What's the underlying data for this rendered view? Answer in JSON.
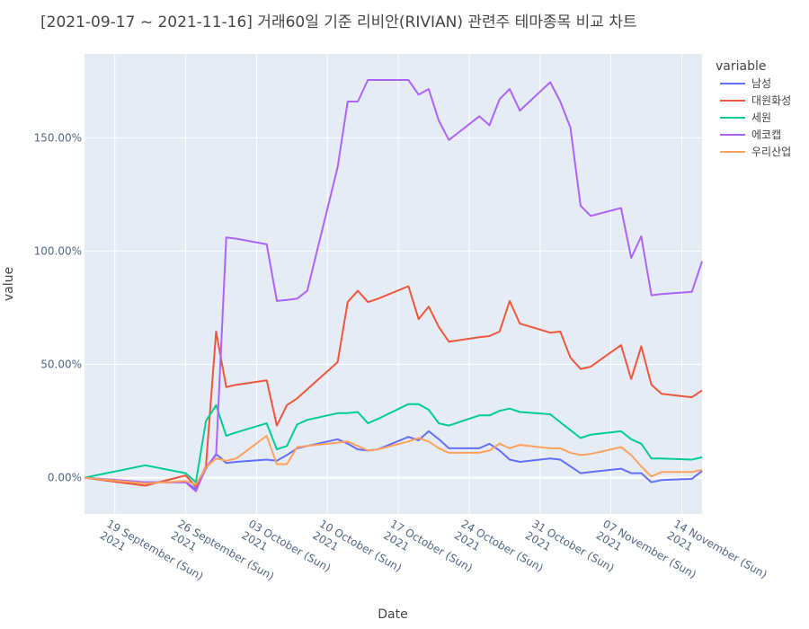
{
  "chart_data": {
    "type": "line",
    "title": "[2021-09-17 ~ 2021-11-16] 거래60일 기준 리비안(RIVIAN) 관련주 테마종목 비교 차트",
    "xlabel": "Date",
    "ylabel": "value",
    "legend_title": "variable",
    "legend_position": "right",
    "background": "#e5ecf6",
    "x_range": [
      "2021-09-16",
      "2021-11-16"
    ],
    "y_range": [
      -0.16,
      1.87
    ],
    "y_ticks": [
      {
        "value": 0.0,
        "label": "0.00%"
      },
      {
        "value": 0.5,
        "label": "50.00%"
      },
      {
        "value": 1.0,
        "label": "100.00%"
      },
      {
        "value": 1.5,
        "label": "150.00%"
      }
    ],
    "x_ticks": [
      {
        "date": "2021-09-19",
        "line1": "19 September (Sun)",
        "line2": "2021"
      },
      {
        "date": "2021-09-26",
        "line1": "26 September (Sun)",
        "line2": "2021"
      },
      {
        "date": "2021-10-03",
        "line1": "03 October (Sun)",
        "line2": "2021"
      },
      {
        "date": "2021-10-10",
        "line1": "10 October (Sun)",
        "line2": "2021"
      },
      {
        "date": "2021-10-17",
        "line1": "17 October (Sun)",
        "line2": "2021"
      },
      {
        "date": "2021-10-24",
        "line1": "24 October (Sun)",
        "line2": "2021"
      },
      {
        "date": "2021-10-31",
        "line1": "31 October (Sun)",
        "line2": "2021"
      },
      {
        "date": "2021-11-07",
        "line1": "07 November (Sun)",
        "line2": "2021"
      },
      {
        "date": "2021-11-14",
        "line1": "14 November (Sun)",
        "line2": "2021"
      }
    ],
    "x": [
      "2021-09-16",
      "2021-09-22",
      "2021-09-26",
      "2021-09-27",
      "2021-09-28",
      "2021-09-29",
      "2021-09-30",
      "2021-10-01",
      "2021-10-04",
      "2021-10-05",
      "2021-10-06",
      "2021-10-07",
      "2021-10-08",
      "2021-10-11",
      "2021-10-12",
      "2021-10-13",
      "2021-10-14",
      "2021-10-15",
      "2021-10-18",
      "2021-10-19",
      "2021-10-20",
      "2021-10-21",
      "2021-10-22",
      "2021-10-25",
      "2021-10-26",
      "2021-10-27",
      "2021-10-28",
      "2021-10-29",
      "2021-11-01",
      "2021-11-02",
      "2021-11-03",
      "2021-11-04",
      "2021-11-05",
      "2021-11-08",
      "2021-11-09",
      "2021-11-10",
      "2021-11-11",
      "2021-11-12",
      "2021-11-15",
      "2021-11-16"
    ],
    "series": [
      {
        "name": "남성",
        "color": "#636efa",
        "values": [
          0.0,
          -0.02,
          -0.02,
          -0.05,
          0.04,
          0.105,
          0.065,
          0.07,
          0.08,
          0.075,
          0.1,
          0.13,
          0.14,
          0.17,
          0.15,
          0.125,
          0.12,
          0.125,
          0.18,
          0.165,
          0.205,
          0.17,
          0.13,
          0.13,
          0.15,
          0.12,
          0.08,
          0.07,
          0.085,
          0.08,
          0.05,
          0.02,
          0.025,
          0.04,
          0.02,
          0.02,
          -0.02,
          -0.01,
          -0.005,
          0.03
        ]
      },
      {
        "name": "대원화성",
        "color": "#ef553b",
        "values": [
          0.0,
          -0.035,
          0.01,
          -0.04,
          0.05,
          0.645,
          0.4,
          0.41,
          0.43,
          0.23,
          0.32,
          0.35,
          0.39,
          0.51,
          0.775,
          0.825,
          0.775,
          0.79,
          0.845,
          0.7,
          0.755,
          0.665,
          0.6,
          0.62,
          0.625,
          0.645,
          0.78,
          0.68,
          0.64,
          0.645,
          0.53,
          0.48,
          0.49,
          0.585,
          0.435,
          0.58,
          0.41,
          0.37,
          0.355,
          0.385
        ]
      },
      {
        "name": "세원",
        "color": "#00cc96",
        "values": [
          0.0,
          0.055,
          0.02,
          -0.02,
          0.25,
          0.32,
          0.185,
          0.2,
          0.24,
          0.125,
          0.14,
          0.235,
          0.255,
          0.285,
          0.285,
          0.29,
          0.24,
          0.26,
          0.325,
          0.325,
          0.3,
          0.24,
          0.23,
          0.275,
          0.275,
          0.295,
          0.305,
          0.29,
          0.28,
          0.245,
          0.21,
          0.175,
          0.19,
          0.205,
          0.17,
          0.15,
          0.085,
          0.085,
          0.08,
          0.09
        ]
      },
      {
        "name": "에코캡",
        "color": "#ab63fa",
        "values": [
          0.0,
          -0.02,
          -0.02,
          -0.06,
          0.045,
          0.1,
          1.06,
          1.055,
          1.03,
          0.78,
          0.785,
          0.79,
          0.825,
          1.37,
          1.66,
          1.66,
          1.755,
          1.755,
          1.755,
          1.69,
          1.715,
          1.575,
          1.49,
          1.595,
          1.555,
          1.67,
          1.715,
          1.62,
          1.745,
          1.66,
          1.545,
          1.2,
          1.155,
          1.19,
          0.97,
          1.065,
          0.805,
          0.81,
          0.82,
          0.955
        ]
      },
      {
        "name": "우리산업",
        "color": "#ffa15a",
        "values": [
          0.0,
          -0.025,
          -0.015,
          -0.03,
          0.045,
          0.085,
          0.075,
          0.085,
          0.185,
          0.06,
          0.06,
          0.135,
          0.14,
          0.155,
          0.16,
          0.14,
          0.12,
          0.125,
          0.16,
          0.175,
          0.16,
          0.13,
          0.11,
          0.11,
          0.12,
          0.15,
          0.13,
          0.145,
          0.13,
          0.13,
          0.11,
          0.1,
          0.105,
          0.135,
          0.1,
          0.05,
          0.005,
          0.025,
          0.025,
          0.035
        ]
      }
    ]
  }
}
